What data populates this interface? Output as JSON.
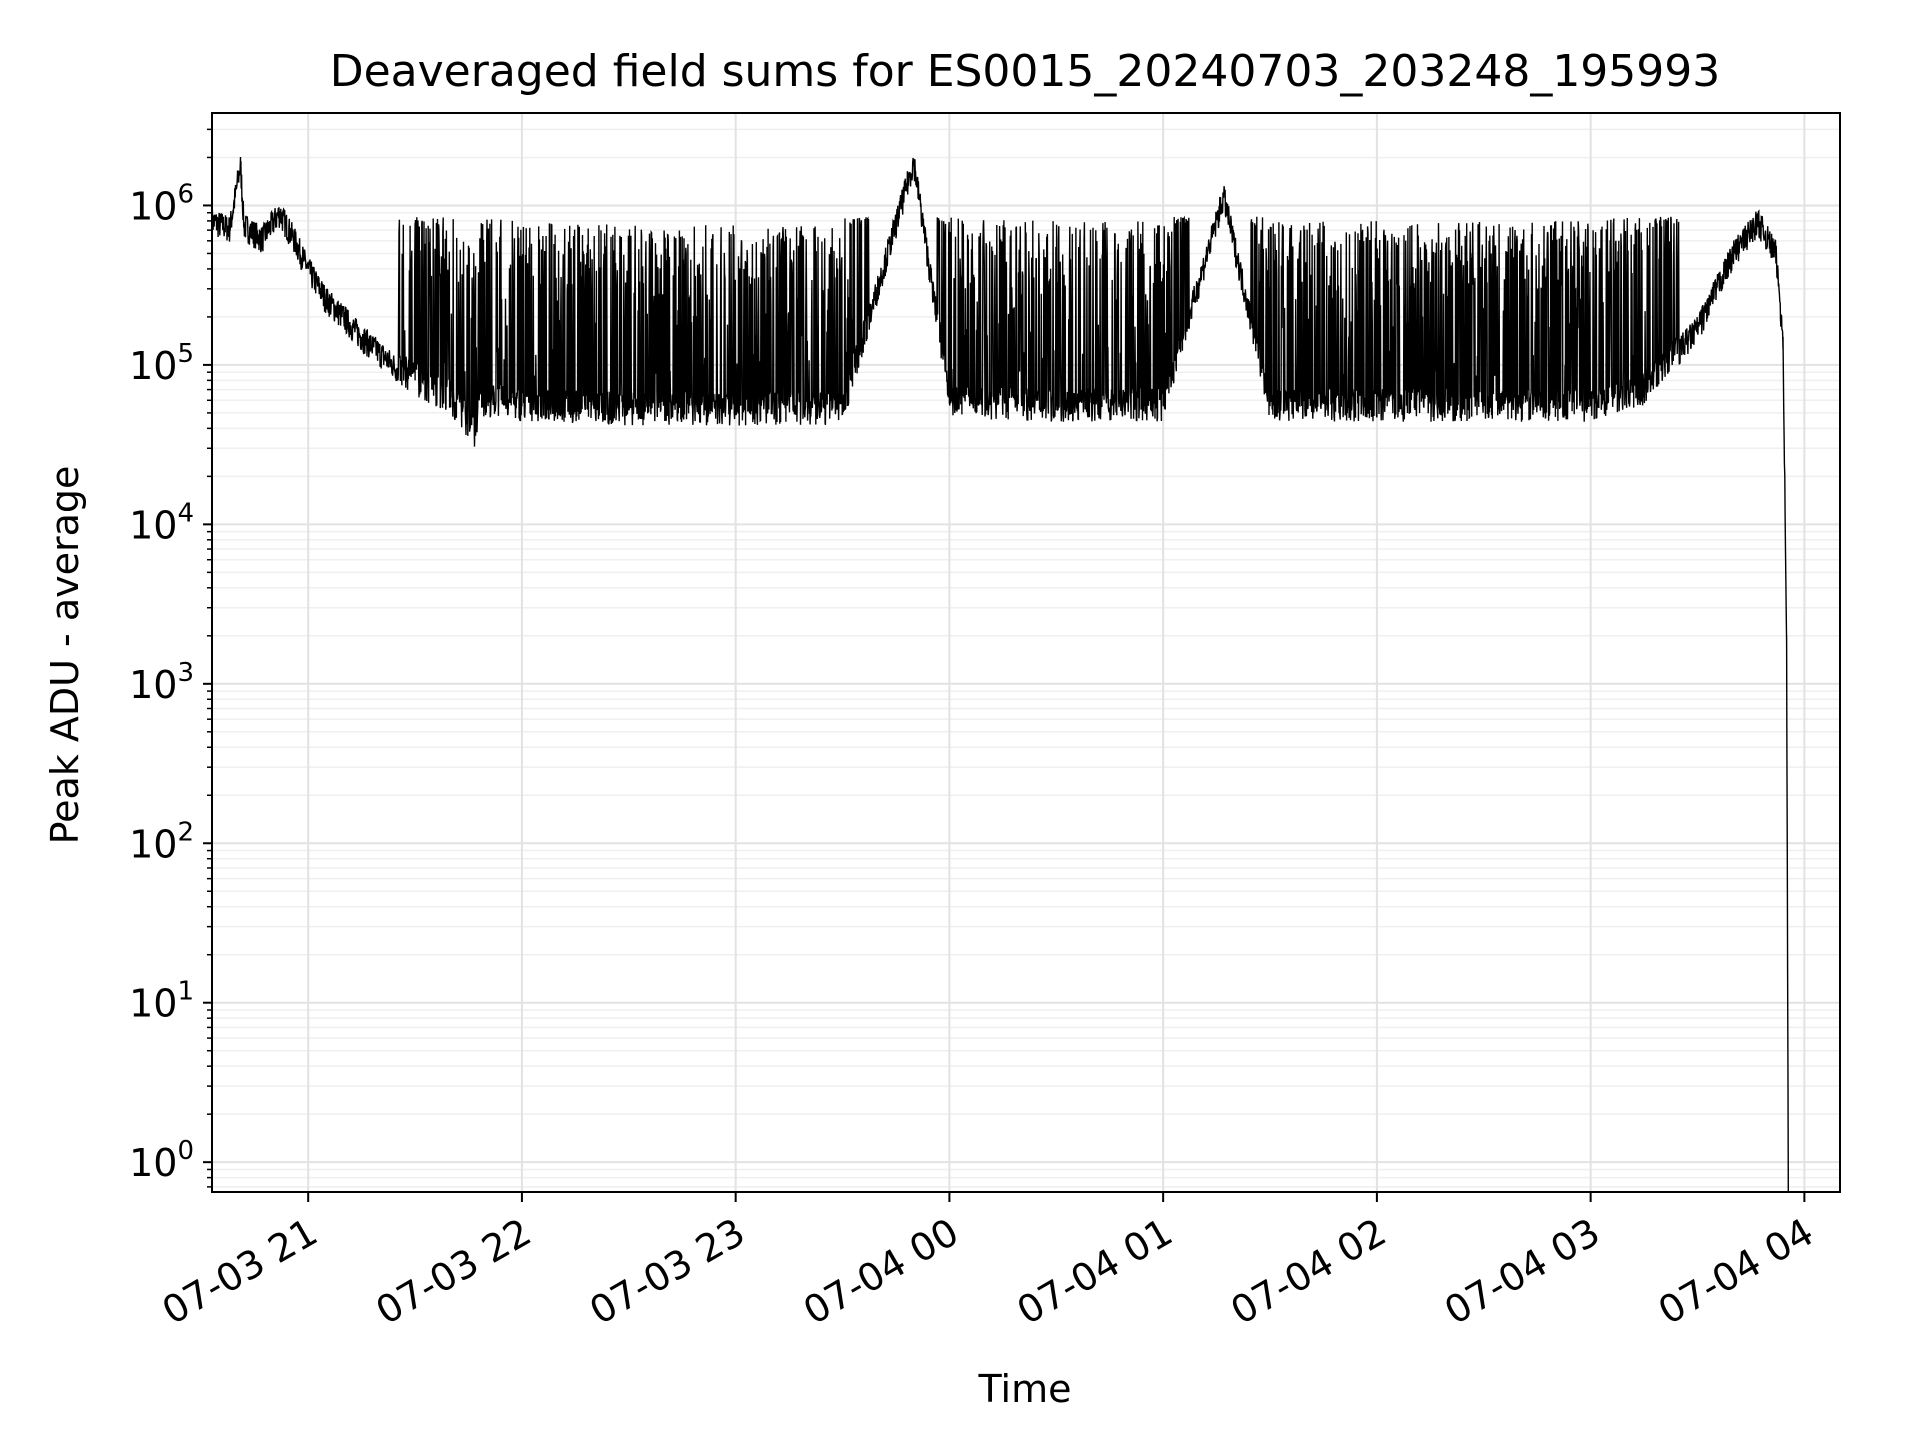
{
  "chart_data": {
    "type": "line",
    "title": "Deaveraged field sums for ES0015_20240703_203248_195993",
    "xlabel": "Time",
    "ylabel": "Peak ADU - average",
    "yscale": "log",
    "ylim": [
      0.65,
      3800000
    ],
    "xlim": [
      "2024-07-03 20:33:00",
      "2024-07-04 04:10:00"
    ],
    "grid": "major and minor",
    "x_ticks": [
      {
        "value": "2024-07-03 21:00",
        "label": "07-03 21"
      },
      {
        "value": "2024-07-03 22:00",
        "label": "07-03 22"
      },
      {
        "value": "2024-07-03 23:00",
        "label": "07-03 23"
      },
      {
        "value": "2024-07-04 00:00",
        "label": "07-04 00"
      },
      {
        "value": "2024-07-04 01:00",
        "label": "07-04 01"
      },
      {
        "value": "2024-07-04 02:00",
        "label": "07-04 02"
      },
      {
        "value": "2024-07-04 03:00",
        "label": "07-04 03"
      },
      {
        "value": "2024-07-04 04:00",
        "label": "07-04 04"
      }
    ],
    "y_ticks": [
      {
        "value": 1,
        "base": "10",
        "exp": "0"
      },
      {
        "value": 10,
        "base": "10",
        "exp": "1"
      },
      {
        "value": 100,
        "base": "10",
        "exp": "2"
      },
      {
        "value": 1000,
        "base": "10",
        "exp": "3"
      },
      {
        "value": 10000,
        "base": "10",
        "exp": "4"
      },
      {
        "value": 100000,
        "base": "10",
        "exp": "5"
      },
      {
        "value": 1000000,
        "base": "10",
        "exp": "6"
      }
    ],
    "line_color": "#000000",
    "series": [
      {
        "points": [
          [
            "2024-07-03 20:33:00",
            800000
          ],
          [
            "2024-07-03 20:38:00",
            720000
          ],
          [
            "2024-07-03 20:41:00",
            1800000
          ],
          [
            "2024-07-03 20:42:00",
            750000
          ],
          [
            "2024-07-03 20:47:00",
            620000
          ],
          [
            "2024-07-03 20:52:00",
            900000
          ],
          [
            "2024-07-03 20:56:00",
            620000
          ],
          [
            "2024-07-03 21:00:00",
            400000
          ],
          [
            "2024-07-03 21:05:00",
            260000
          ],
          [
            "2024-07-03 21:10:00",
            200000
          ],
          [
            "2024-07-03 21:15:00",
            150000
          ],
          [
            "2024-07-03 21:20:00",
            120000
          ],
          [
            "2024-07-03 21:25:00",
            95000
          ],
          [
            "2024-07-03 21:30:00",
            80000
          ],
          [
            "2024-07-03 21:35:00",
            70000
          ],
          [
            "2024-07-03 21:40:00",
            62000
          ],
          [
            "2024-07-03 21:47:00",
            36000
          ],
          [
            "2024-07-03 21:48:00",
            60000
          ],
          [
            "2024-07-03 22:00:00",
            55000
          ],
          [
            "2024-07-03 22:30:00",
            52000
          ],
          [
            "2024-07-03 23:00:00",
            52000
          ],
          [
            "2024-07-03 23:30:00",
            52000
          ],
          [
            "2024-07-03 23:50:00",
            1900000
          ],
          [
            "2024-07-04 00:00:00",
            58000
          ],
          [
            "2024-07-04 00:30:00",
            55000
          ],
          [
            "2024-07-04 01:00:00",
            55000
          ],
          [
            "2024-07-04 01:17:00",
            1150000
          ],
          [
            "2024-07-04 01:30:00",
            55000
          ],
          [
            "2024-07-04 02:00:00",
            55000
          ],
          [
            "2024-07-04 02:30:00",
            55000
          ],
          [
            "2024-07-04 03:00:00",
            55000
          ],
          [
            "2024-07-04 03:15:00",
            70000
          ],
          [
            "2024-07-04 03:30:00",
            170000
          ],
          [
            "2024-07-04 03:40:00",
            500000
          ],
          [
            "2024-07-04 03:47:00",
            800000
          ],
          [
            "2024-07-04 03:52:00",
            500000
          ],
          [
            "2024-07-04 03:54:00",
            150000
          ],
          [
            "2024-07-04 03:55:00",
            2000
          ],
          [
            "2024-07-04 03:55:30",
            0.65
          ]
        ],
        "peak_envelope_upper": 850000,
        "peak_envelope_range": [
          "2024-07-03 21:25:00",
          "2024-07-04 03:25:00"
        ]
      }
    ]
  }
}
